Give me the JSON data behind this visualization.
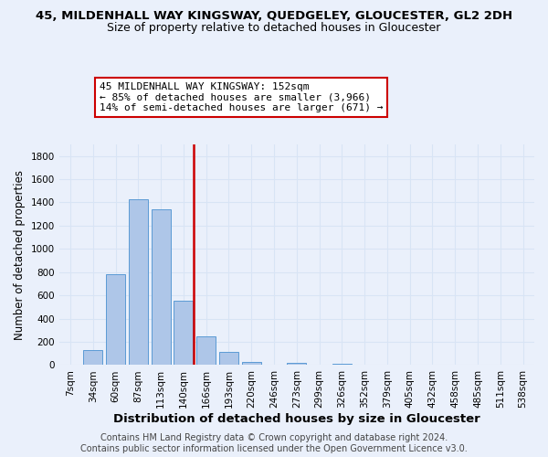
{
  "title": "45, MILDENHALL WAY KINGSWAY, QUEDGELEY, GLOUCESTER, GL2 2DH",
  "subtitle": "Size of property relative to detached houses in Gloucester",
  "xlabel": "Distribution of detached houses by size in Gloucester",
  "ylabel": "Number of detached properties",
  "bar_labels": [
    "7sqm",
    "34sqm",
    "60sqm",
    "87sqm",
    "113sqm",
    "140sqm",
    "166sqm",
    "193sqm",
    "220sqm",
    "246sqm",
    "273sqm",
    "299sqm",
    "326sqm",
    "352sqm",
    "379sqm",
    "405sqm",
    "432sqm",
    "458sqm",
    "485sqm",
    "511sqm",
    "538sqm"
  ],
  "bar_values": [
    0,
    130,
    780,
    1430,
    1340,
    555,
    250,
    110,
    30,
    0,
    20,
    0,
    15,
    0,
    0,
    0,
    0,
    0,
    0,
    0,
    0
  ],
  "bar_color": "#aec6e8",
  "bar_edge_color": "#5b9bd5",
  "vline_color": "#cc0000",
  "vline_x": 5.43,
  "annotation_line1": "45 MILDENHALL WAY KINGSWAY: 152sqm",
  "annotation_line2": "← 85% of detached houses are smaller (3,966)",
  "annotation_line3": "14% of semi-detached houses are larger (671) →",
  "annotation_box_color": "#ffffff",
  "annotation_box_edge": "#cc0000",
  "ylim": [
    0,
    1900
  ],
  "yticks": [
    0,
    200,
    400,
    600,
    800,
    1000,
    1200,
    1400,
    1600,
    1800
  ],
  "footer_line1": "Contains HM Land Registry data © Crown copyright and database right 2024.",
  "footer_line2": "Contains public sector information licensed under the Open Government Licence v3.0.",
  "background_color": "#eaf0fb",
  "grid_color": "#d8e4f5",
  "title_fontsize": 9.5,
  "subtitle_fontsize": 9,
  "xlabel_fontsize": 9.5,
  "ylabel_fontsize": 8.5,
  "tick_fontsize": 7.5,
  "annotation_fontsize": 8,
  "footer_fontsize": 7
}
